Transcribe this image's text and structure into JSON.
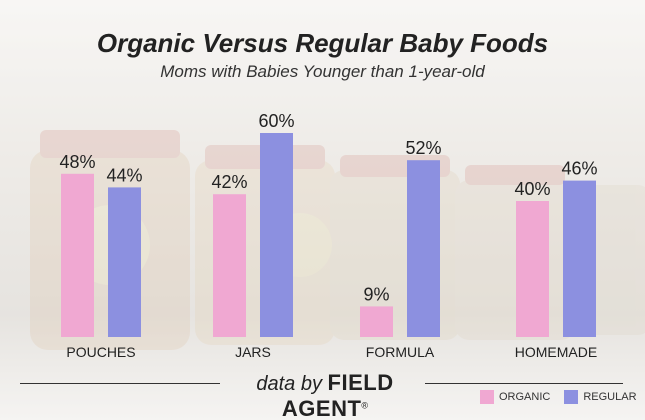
{
  "title": "Organic Versus Regular Baby Foods",
  "subtitle": "Moms with Babies Younger than 1-year-old",
  "credit": {
    "prefix": "data by",
    "brand": "FIELD AGENT",
    "mark": "®"
  },
  "colors": {
    "organic": "#f0a8d2",
    "regular": "#8c90e0",
    "background": "#ece9e4"
  },
  "chart_data": {
    "type": "bar",
    "categories": [
      "POUCHES",
      "JARS",
      "FORMULA",
      "HOMEMADE"
    ],
    "series": [
      {
        "name": "ORGANIC",
        "values": [
          48,
          42,
          9,
          40
        ],
        "labels": [
          "48%",
          "42%",
          "9%",
          "40%"
        ]
      },
      {
        "name": "REGULAR",
        "values": [
          44,
          60,
          52,
          46
        ],
        "labels": [
          "44%",
          "60%",
          "52%",
          "46%"
        ]
      }
    ],
    "ylim": [
      0,
      60
    ],
    "grid": false,
    "legend_position": "bottom-right"
  }
}
